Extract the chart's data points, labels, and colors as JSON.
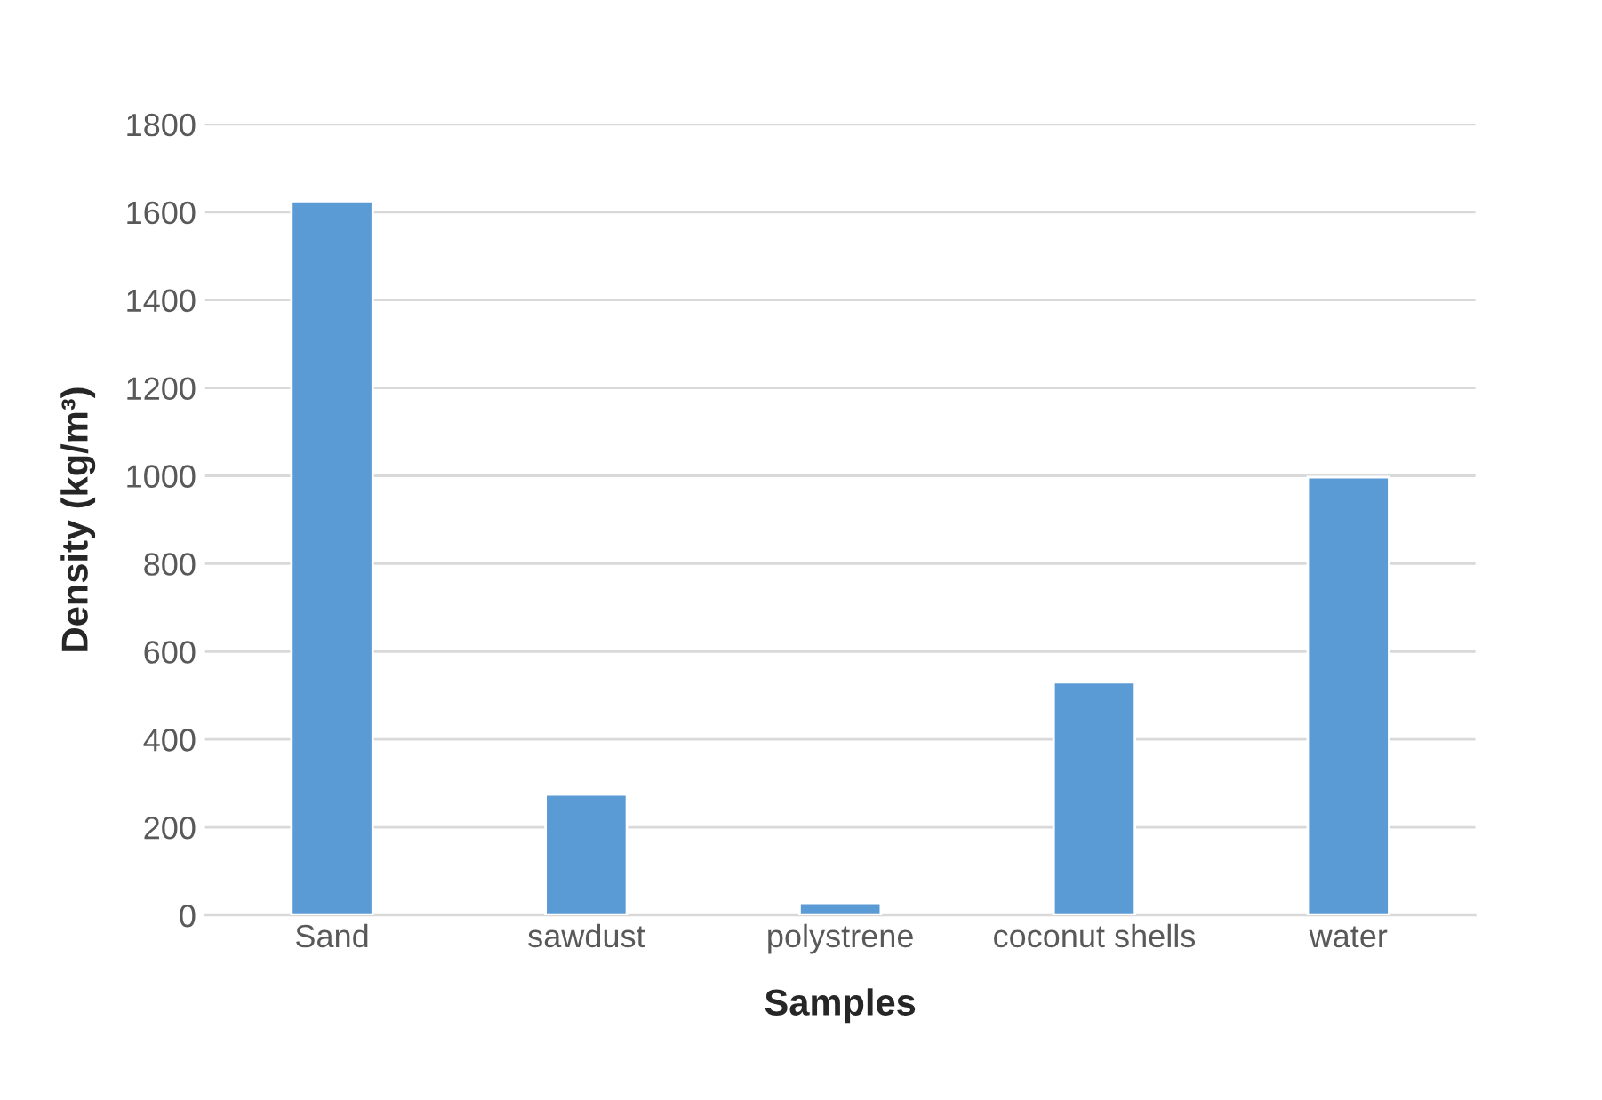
{
  "chart_data": {
    "type": "bar",
    "xlabel": "Samples",
    "ylabel": "Density (kg/m³)",
    "categories": [
      "Sand",
      "sawdust",
      "polystrene",
      "coconut shells",
      "water"
    ],
    "values": [
      1625,
      275,
      28,
      530,
      997
    ],
    "color": "#5b9bd5",
    "ylim": [
      0,
      1800
    ],
    "yticks": [
      0,
      200,
      400,
      600,
      800,
      1000,
      1200,
      1400,
      1600,
      1800
    ],
    "grid": "y",
    "legend": false
  }
}
